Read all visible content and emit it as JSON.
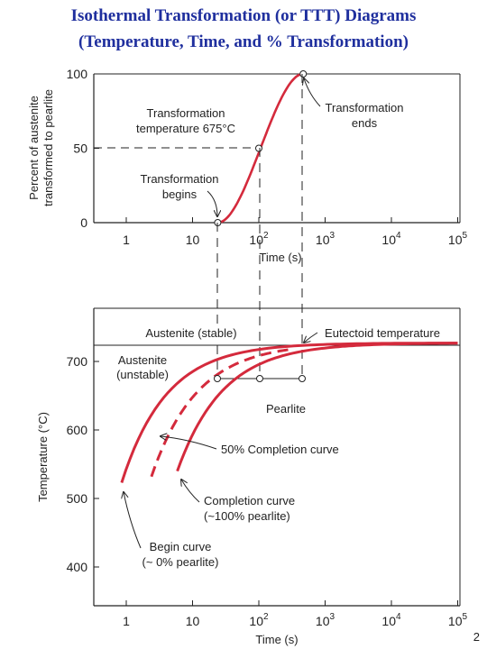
{
  "slide": {
    "title_line1": "Isothermal Transformation (or TTT) Diagrams",
    "title_line2": "(Temperature, Time, and % Transformation)",
    "page_number": "2"
  },
  "colors": {
    "curve": "#d42a3c",
    "title": "#1f2f9e",
    "axis": "#222222"
  },
  "chart_data": [
    {
      "type": "line",
      "name": "percent-transformed-plot",
      "ylabel_line1": "Percent of austenite",
      "ylabel_line2": "transformed to pearlite",
      "xlabel": "Time (s)",
      "x_ticks": [
        {
          "base": "1",
          "exp": ""
        },
        {
          "base": "10",
          "exp": ""
        },
        {
          "base": "10",
          "exp": "2"
        },
        {
          "base": "10",
          "exp": "3"
        },
        {
          "base": "10",
          "exp": "4"
        },
        {
          "base": "10",
          "exp": "5"
        }
      ],
      "y_ticks": [
        "0",
        "50",
        "100"
      ],
      "ylim": [
        0,
        100
      ],
      "xlim_log10": [
        0,
        5
      ],
      "annotations": {
        "temp_line1": "Transformation",
        "temp_line2": "temperature 675°C",
        "ends_line1": "Transformation",
        "ends_line2": "ends",
        "begins_line1": "Transformation",
        "begins_line2": "begins"
      },
      "markers_log_time": [
        1.38,
        2.0,
        2.67
      ],
      "markers_percent": [
        0,
        50,
        100
      ]
    },
    {
      "type": "line",
      "name": "ttt-diagram",
      "ylabel": "Temperature (°C)",
      "xlabel": "Time (s)",
      "x_ticks": [
        {
          "base": "1",
          "exp": ""
        },
        {
          "base": "10",
          "exp": ""
        },
        {
          "base": "10",
          "exp": "2"
        },
        {
          "base": "10",
          "exp": "3"
        },
        {
          "base": "10",
          "exp": "4"
        },
        {
          "base": "10",
          "exp": "5"
        }
      ],
      "y_ticks": [
        "400",
        "500",
        "600",
        "700"
      ],
      "eutectoid_temperature": 727,
      "transformation_temperature": 675,
      "labels": {
        "austenite_stable": "Austenite (stable)",
        "eutectoid": "Eutectoid temperature",
        "austenite_unstable_line1": "Austenite",
        "austenite_unstable_line2": "(unstable)",
        "pearlite": "Pearlite",
        "fifty_percent": "50% Completion curve",
        "completion_line1": "Completion curve",
        "completion_line2": "(~100% pearlite)",
        "begin_line1": "Begin curve",
        "begin_line2": "(~ 0% pearlite)"
      }
    }
  ]
}
